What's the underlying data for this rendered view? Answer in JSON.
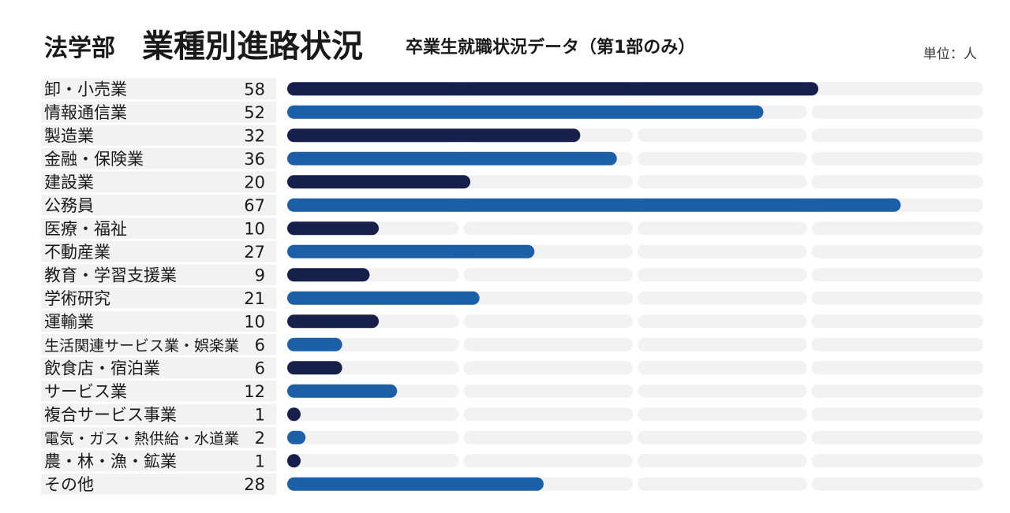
{
  "header": {
    "department": "法学部",
    "title": "業種別進路状況",
    "subtitle": "卒業生就職状況データ（第1部のみ）",
    "unit": "単位：人"
  },
  "colors": {
    "dark": "#16204a",
    "blue": "#1a5fa8",
    "track": "#f2f2f2",
    "label_bg": "#f2f2f2"
  },
  "chart_data": {
    "type": "bar",
    "orientation": "horizontal",
    "categories": [
      "卸・小売業",
      "情報通信業",
      "製造業",
      "金融・保険業",
      "建設業",
      "公務員",
      "医療・福祉",
      "不動産業",
      "教育・学習支援業",
      "学術研究",
      "運輸業",
      "生活関連サービス業・娯楽業",
      "飲食店・宿泊業",
      "サービス業",
      "複合サービス事業",
      "電気・ガス・熱供給・水道業",
      "農・林・漁・鉱業",
      "その他"
    ],
    "values": [
      58,
      52,
      32,
      36,
      20,
      67,
      10,
      27,
      9,
      21,
      10,
      6,
      6,
      12,
      1,
      2,
      1,
      28
    ],
    "xlim": [
      0,
      76
    ],
    "grid": true,
    "gridlines": [
      19,
      38,
      57
    ],
    "legend": "none"
  }
}
